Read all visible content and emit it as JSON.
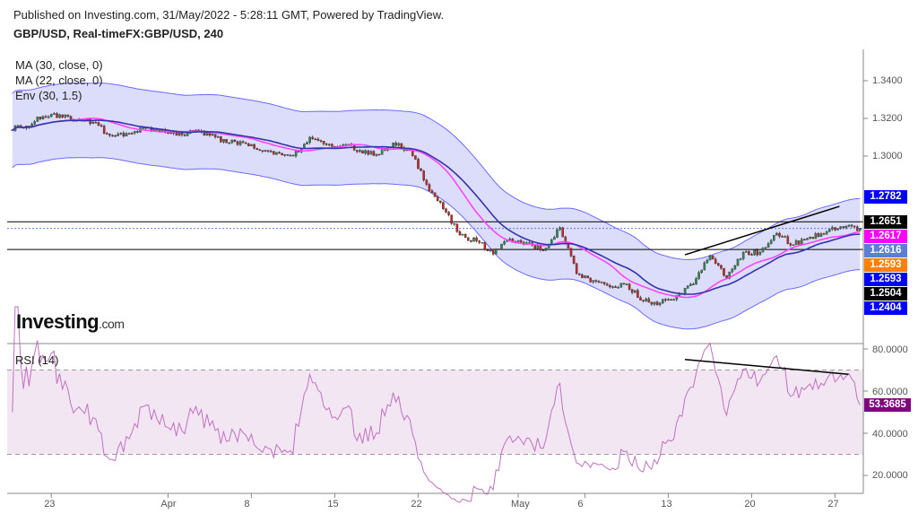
{
  "header": {
    "published": "Published on Investing.com, 31/May/2022 - 5:28:11 GMT, Powered by TradingView.",
    "symbol": "GBP/USD, Real-timeFX:GBP/USD, 240"
  },
  "indicators": [
    "MA (30, close, 0)",
    "MA (22, close, 0)",
    "Env (30, 1.5)"
  ],
  "rsi_label": "RSI (14)",
  "logo": {
    "main": "Investing",
    "suffix": ".com"
  },
  "price_labels": [
    {
      "value": "1.2782",
      "color": "#0000ff",
      "meaning": "Envelope upper"
    },
    {
      "value": "1.2651",
      "color": "#000000",
      "meaning": "Horizontal line"
    },
    {
      "value": "1.2617",
      "color": "#ff00ff",
      "meaning": "MA 22"
    },
    {
      "value": "1.2616",
      "color": "#5b7fd6",
      "meaning": "Last price"
    },
    {
      "value": "1.2593",
      "color": "#ff7f00",
      "meaning": "Envelope basis"
    },
    {
      "value": "1.2593",
      "color": "#0000ff",
      "meaning": "MA 30"
    },
    {
      "value": "1.2504",
      "color": "#000000",
      "meaning": "Horizontal line"
    },
    {
      "value": "1.2404",
      "color": "#0000ff",
      "meaning": "Envelope lower"
    }
  ],
  "rsi_last": {
    "value": "53.3685",
    "color": "#800080"
  },
  "chart_data": [
    {
      "type": "candlestick",
      "timeframe": "240",
      "y_ticks": [
        "1.3400",
        "1.3200",
        "1.3000"
      ],
      "ylim": [
        1.215,
        1.36
      ],
      "x_ticks": [
        "23",
        "Apr",
        "8",
        "15",
        "22",
        "May",
        "6",
        "13",
        "20",
        "27"
      ],
      "x_tick_days": [
        "2022-03-23",
        "2022-04-01",
        "2022-04-08",
        "2022-04-15",
        "2022-04-22",
        "2022-05-02",
        "2022-05-06",
        "2022-05-13",
        "2022-05-20",
        "2022-05-27"
      ],
      "daily_close": {
        "dates": [
          "03-21",
          "03-22",
          "03-23",
          "03-24",
          "03-25",
          "03-28",
          "03-29",
          "03-30",
          "03-31",
          "04-01",
          "04-04",
          "04-05",
          "04-06",
          "04-07",
          "04-08",
          "04-11",
          "04-12",
          "04-13",
          "04-14",
          "04-15",
          "04-18",
          "04-19",
          "04-20",
          "04-21",
          "04-22",
          "04-25",
          "04-26",
          "04-27",
          "04-28",
          "04-29",
          "05-02",
          "05-03",
          "05-04",
          "05-05",
          "05-06",
          "05-09",
          "05-10",
          "05-11",
          "05-12",
          "05-13",
          "05-16",
          "05-17",
          "05-18",
          "05-19",
          "05-20",
          "05-23",
          "05-24",
          "05-25",
          "05-26",
          "05-27",
          "05-30"
        ],
        "values": [
          1.316,
          1.321,
          1.322,
          1.319,
          1.318,
          1.311,
          1.312,
          1.315,
          1.313,
          1.311,
          1.313,
          1.311,
          1.307,
          1.307,
          1.303,
          1.302,
          1.3,
          1.31,
          1.306,
          1.306,
          1.303,
          1.301,
          1.307,
          1.303,
          1.285,
          1.272,
          1.258,
          1.255,
          1.248,
          1.256,
          1.254,
          1.25,
          1.262,
          1.2376,
          1.234,
          1.2305,
          1.232,
          1.223,
          1.222,
          1.226,
          1.232,
          1.247,
          1.235,
          1.249,
          1.249,
          1.259,
          1.253,
          1.257,
          1.26,
          1.262,
          1.2616
        ]
      },
      "horizontal_lines": [
        1.2651,
        1.2504
      ],
      "last_price_line": 1.2616,
      "trendline": {
        "from": [
          "05-16",
          1.2476
        ],
        "to": [
          "05-27",
          1.2733
        ]
      },
      "ma_periods": [
        30,
        22
      ],
      "envelope": {
        "length": 30,
        "percent": 1.5
      }
    },
    {
      "type": "line",
      "title": "RSI (14)",
      "y_ticks": [
        "80.0000",
        "60.0000",
        "40.0000",
        "20.0000"
      ],
      "bands": [
        70,
        30
      ],
      "trendline": {
        "from": [
          "05-16",
          75
        ],
        "to": [
          "05-27",
          68
        ]
      },
      "last": 53.3685
    }
  ]
}
